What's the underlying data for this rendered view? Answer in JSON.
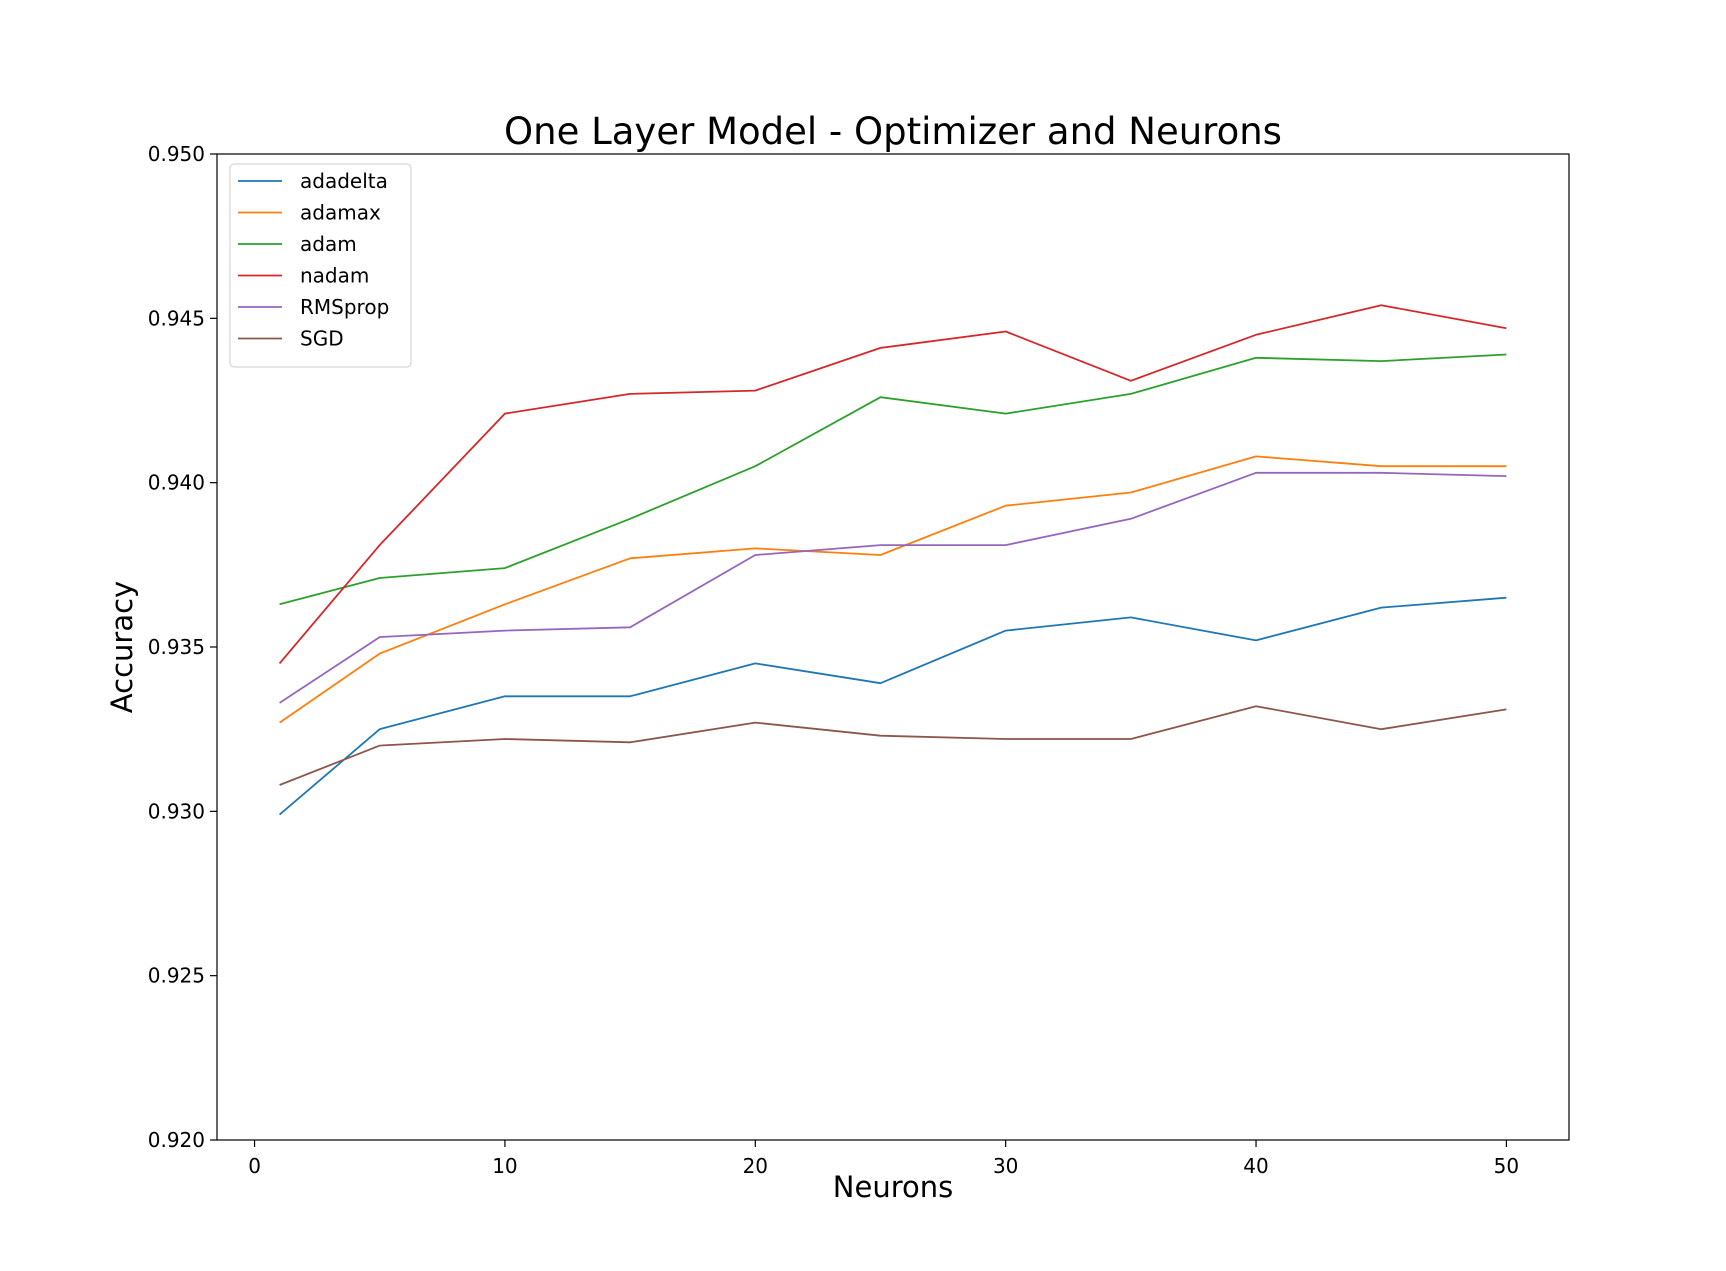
{
  "chart_data": {
    "type": "line",
    "title": "One Layer Model - Optimizer and Neurons",
    "xlabel": "Neurons",
    "ylabel": "Accuracy",
    "xlim": [
      -1.5,
      52.5
    ],
    "ylim": [
      0.92,
      0.95
    ],
    "xticks": [
      0,
      10,
      20,
      30,
      40,
      50
    ],
    "xtick_labels": [
      "0",
      "10",
      "20",
      "30",
      "40",
      "50"
    ],
    "yticks": [
      0.92,
      0.925,
      0.93,
      0.935,
      0.94,
      0.945,
      0.95
    ],
    "ytick_labels": [
      "0.920",
      "0.925",
      "0.930",
      "0.935",
      "0.940",
      "0.945",
      "0.950"
    ],
    "grid": false,
    "legend_position": "top-left",
    "x": [
      1,
      5,
      10,
      15,
      20,
      25,
      30,
      35,
      40,
      45,
      50
    ],
    "series": [
      {
        "name": "adadelta",
        "color": "#1f77b4",
        "values": [
          0.9299,
          0.9325,
          0.9335,
          0.9335,
          0.9345,
          0.9339,
          0.9355,
          0.9359,
          0.9352,
          0.9362,
          0.9365
        ]
      },
      {
        "name": "adamax",
        "color": "#ff7f0e",
        "values": [
          0.9327,
          0.9348,
          0.9363,
          0.9377,
          0.938,
          0.9378,
          0.9393,
          0.9397,
          0.9408,
          0.9405,
          0.9405
        ]
      },
      {
        "name": "adam",
        "color": "#2ca02c",
        "values": [
          0.9363,
          0.9371,
          0.9374,
          0.9389,
          0.9405,
          0.9426,
          0.9421,
          0.9427,
          0.9438,
          0.9437,
          0.9439
        ]
      },
      {
        "name": "nadam",
        "color": "#d62728",
        "values": [
          0.9345,
          0.9381,
          0.9421,
          0.9427,
          0.9428,
          0.9441,
          0.9446,
          0.9431,
          0.9445,
          0.9454,
          0.9447
        ]
      },
      {
        "name": "RMSprop",
        "color": "#9467bd",
        "values": [
          0.9333,
          0.9353,
          0.9355,
          0.9356,
          0.9378,
          0.9381,
          0.9381,
          0.9389,
          0.9403,
          0.9403,
          0.9402
        ]
      },
      {
        "name": "SGD",
        "color": "#8c564b",
        "values": [
          0.9308,
          0.932,
          0.9322,
          0.9321,
          0.9327,
          0.9323,
          0.9322,
          0.9322,
          0.9332,
          0.9325,
          0.9331
        ]
      }
    ]
  }
}
